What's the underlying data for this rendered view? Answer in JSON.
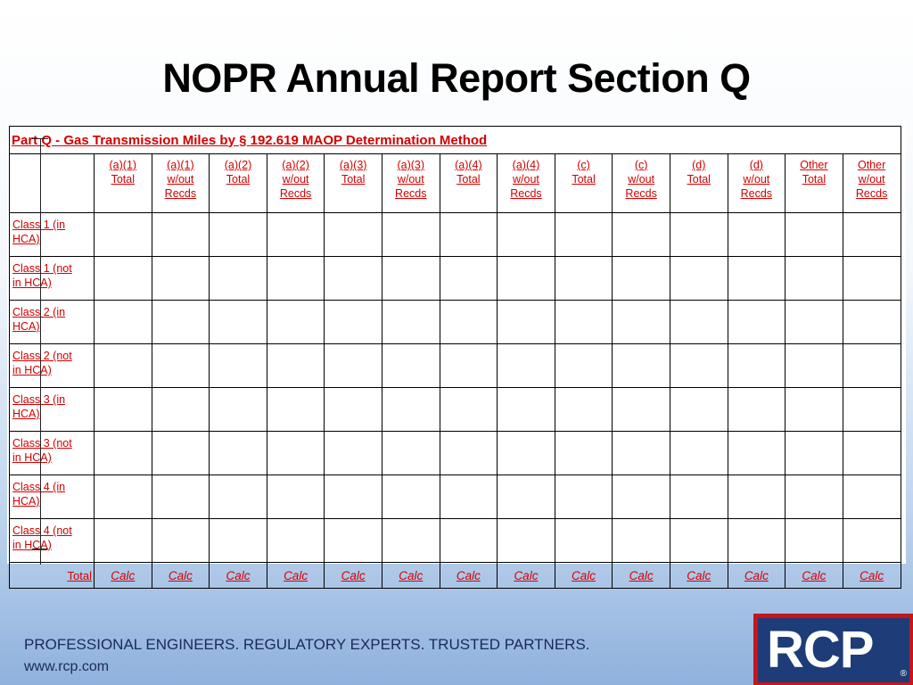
{
  "slide": {
    "title": "NOPR Annual Report Section Q"
  },
  "table": {
    "part_title": "Part Q - Gas Transmission Miles by § 192.619 MAOP Determination Method",
    "columns": [
      "(a)(1)\nTotal",
      "(a)(1)\nw/out\nRecds",
      "(a)(2)\nTotal",
      "(a)(2)\nw/out\nRecds",
      "(a)(3)\nTotal",
      "(a)(3)\nw/out\nRecds",
      "(a)(4)\nTotal",
      "(a)(4)\nw/out\nRecds",
      "(c)\nTotal",
      "(c)\nw/out\nRecds",
      "(d)\nTotal",
      "(d)\nw/out\nRecds",
      "Other\nTotal",
      "Other\nw/out\nRecds"
    ],
    "rows": [
      "Class 1 (in\nHCA)",
      "Class 1 (not\nin HCA)",
      "Class 2 (in\nHCA)",
      "Class 2 (not\nin HCA)",
      "Class 3  (in\nHCA)",
      "Class 3 (not\nin HCA)",
      "Class 4 (in\nHCA)",
      "Class 4 (not\nin HCA)"
    ],
    "total_label": "Total",
    "calc_label": "Calc"
  },
  "footer": {
    "tagline": "PROFESSIONAL ENGINEERS. REGULATORY EXPERTS. TRUSTED PARTNERS.",
    "url": "www.rcp.com"
  },
  "logo": {
    "text": "RCP",
    "mark": "®"
  },
  "colors": {
    "accent_red": "#d40000",
    "logo_blue": "#1e3c78",
    "logo_red": "#c4161c"
  }
}
